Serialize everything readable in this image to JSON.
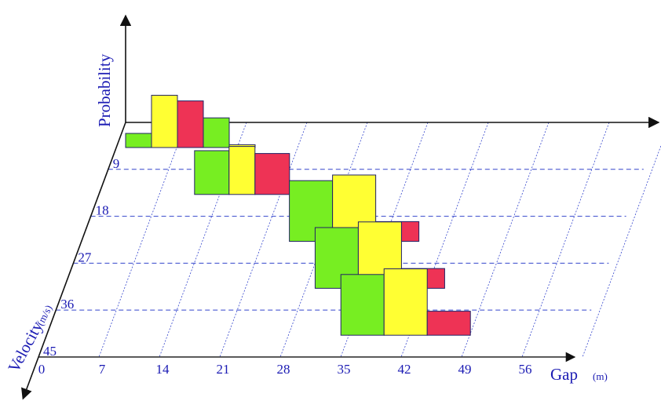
{
  "chart_data": {
    "type": "bar",
    "title": "",
    "xlabel": "Gap",
    "xunit": "(m)",
    "ylabel": "Velocity",
    "yunit": "(m/s)",
    "zlabel": "Probability",
    "x_ticks": [
      "0",
      "7",
      "14",
      "21",
      "28",
      "35",
      "42",
      "49",
      "56"
    ],
    "y_ticks": [
      "9",
      "18",
      "27",
      "36",
      "45"
    ],
    "colors": {
      "green": "#77ee22",
      "yellow": "#ffff33",
      "red": "#ee3355",
      "axis": "#111111",
      "grid": "#3344cc",
      "text": "#1a1ab3"
    },
    "bars": [
      {
        "velocity": 0,
        "gap_start": 0,
        "gap_end": 3,
        "probability": 0.1,
        "color": "green"
      },
      {
        "velocity": 0,
        "gap_start": 3,
        "gap_end": 6,
        "probability": 0.37,
        "color": "yellow"
      },
      {
        "velocity": 0,
        "gap_start": 6,
        "gap_end": 9,
        "probability": 0.33,
        "color": "red"
      },
      {
        "velocity": 0,
        "gap_start": 9,
        "gap_end": 12,
        "probability": 0.21,
        "color": "green"
      },
      {
        "velocity": 0,
        "gap_start": 12,
        "gap_end": 15,
        "probability": 0.02,
        "color": "yellow"
      },
      {
        "velocity": 9,
        "gap_start": 10,
        "gap_end": 14,
        "probability": 0.31,
        "color": "green"
      },
      {
        "velocity": 9,
        "gap_start": 14,
        "gap_end": 17,
        "probability": 0.34,
        "color": "yellow"
      },
      {
        "velocity": 9,
        "gap_start": 17,
        "gap_end": 21,
        "probability": 0.29,
        "color": "red"
      },
      {
        "velocity": 18,
        "gap_start": 23,
        "gap_end": 28,
        "probability": 0.43,
        "color": "green"
      },
      {
        "velocity": 18,
        "gap_start": 28,
        "gap_end": 33,
        "probability": 0.47,
        "color": "yellow"
      },
      {
        "velocity": 18,
        "gap_start": 33,
        "gap_end": 38,
        "probability": 0.14,
        "color": "red"
      },
      {
        "velocity": 27,
        "gap_start": 28,
        "gap_end": 33,
        "probability": 0.43,
        "color": "green"
      },
      {
        "velocity": 27,
        "gap_start": 33,
        "gap_end": 38,
        "probability": 0.47,
        "color": "yellow"
      },
      {
        "velocity": 27,
        "gap_start": 38,
        "gap_end": 43,
        "probability": 0.14,
        "color": "red"
      },
      {
        "velocity": 36,
        "gap_start": 33,
        "gap_end": 38,
        "probability": 0.43,
        "color": "green"
      },
      {
        "velocity": 36,
        "gap_start": 38,
        "gap_end": 43,
        "probability": 0.47,
        "color": "yellow"
      },
      {
        "velocity": 36,
        "gap_start": 43,
        "gap_end": 48,
        "probability": 0.17,
        "color": "red"
      }
    ]
  }
}
